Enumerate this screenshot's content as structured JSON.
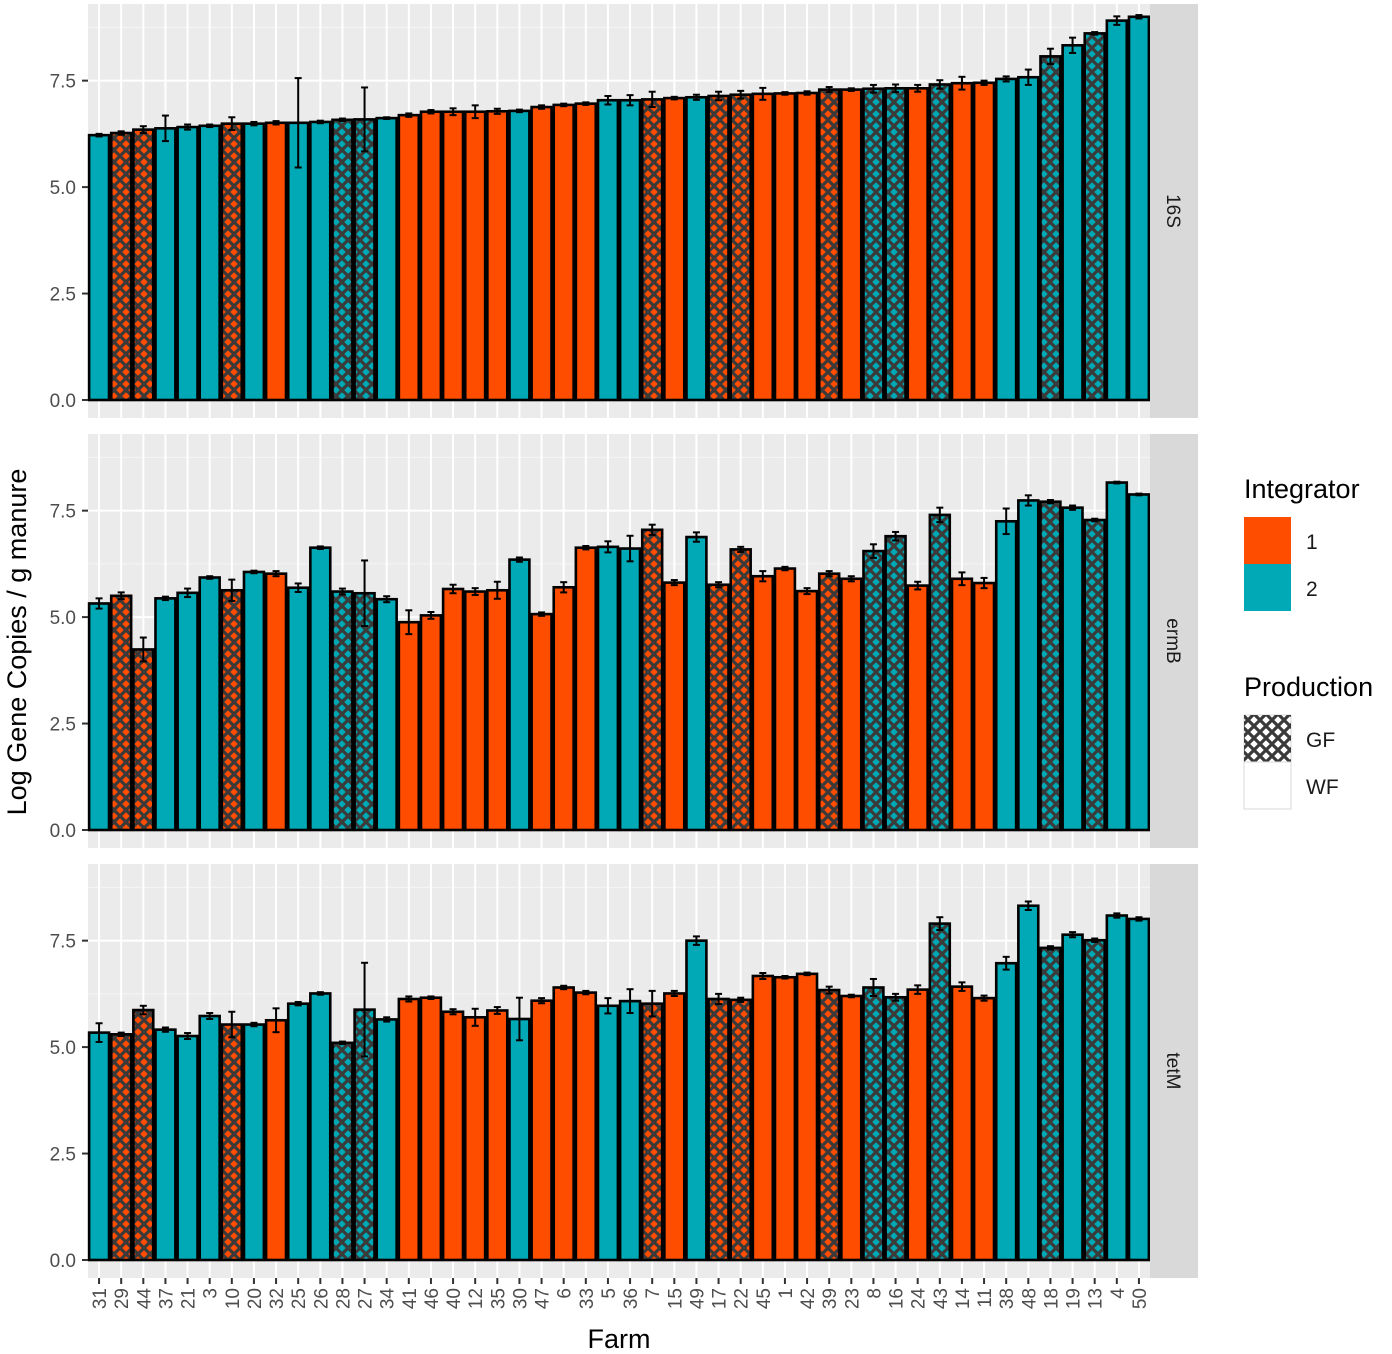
{
  "chart_data": {
    "type": "bar",
    "xlabel": "Farm",
    "ylabel": "Log Gene Copies / g manure",
    "ylim": [
      0,
      9.3
    ],
    "yticks": [
      "0.0",
      "2.5",
      "5.0",
      "7.5"
    ],
    "yticks_values": [
      0,
      2.5,
      5,
      7.5
    ],
    "categories": [
      "31",
      "29",
      "44",
      "37",
      "21",
      "3",
      "10",
      "20",
      "32",
      "25",
      "26",
      "28",
      "27",
      "34",
      "41",
      "46",
      "40",
      "12",
      "35",
      "30",
      "47",
      "6",
      "33",
      "5",
      "36",
      "7",
      "15",
      "49",
      "17",
      "22",
      "45",
      "1",
      "42",
      "39",
      "23",
      "8",
      "16",
      "24",
      "43",
      "14",
      "11",
      "38",
      "48",
      "18",
      "19",
      "13",
      "4",
      "50"
    ],
    "integrator": [
      2,
      1,
      1,
      2,
      2,
      2,
      1,
      2,
      1,
      2,
      2,
      2,
      2,
      2,
      1,
      1,
      1,
      1,
      1,
      2,
      1,
      1,
      1,
      2,
      2,
      1,
      1,
      2,
      1,
      1,
      1,
      1,
      1,
      1,
      1,
      2,
      2,
      1,
      2,
      1,
      1,
      2,
      2,
      2,
      2,
      2,
      2,
      2
    ],
    "production": [
      "WF",
      "GF",
      "GF",
      "WF",
      "WF",
      "WF",
      "GF",
      "WF",
      "WF",
      "WF",
      "WF",
      "GF",
      "GF",
      "WF",
      "WF",
      "WF",
      "WF",
      "WF",
      "WF",
      "WF",
      "WF",
      "WF",
      "WF",
      "WF",
      "WF",
      "GF",
      "WF",
      "WF",
      "GF",
      "GF",
      "WF",
      "WF",
      "WF",
      "GF",
      "WF",
      "GF",
      "GF",
      "WF",
      "GF",
      "WF",
      "WF",
      "WF",
      "WF",
      "GF",
      "WF",
      "GF",
      "WF",
      "WF"
    ],
    "colors": {
      "1": "#FF4D00",
      "2": "#00A9B5"
    },
    "series": [
      {
        "name": "16S",
        "values": [
          6.22,
          6.27,
          6.35,
          6.38,
          6.41,
          6.44,
          6.49,
          6.49,
          6.51,
          6.51,
          6.53,
          6.58,
          6.59,
          6.62,
          6.69,
          6.77,
          6.77,
          6.77,
          6.78,
          6.79,
          6.88,
          6.93,
          6.96,
          7.04,
          7.04,
          7.06,
          7.09,
          7.11,
          7.14,
          7.17,
          7.19,
          7.2,
          7.21,
          7.29,
          7.29,
          7.31,
          7.32,
          7.32,
          7.41,
          7.44,
          7.45,
          7.54,
          7.58,
          8.07,
          8.33,
          8.61,
          8.91,
          9.0
        ],
        "errors": [
          0.03,
          0.04,
          0.08,
          0.3,
          0.06,
          0.03,
          0.15,
          0.04,
          0.04,
          1.05,
          0.03,
          0.03,
          0.75,
          0.02,
          0.04,
          0.04,
          0.08,
          0.15,
          0.06,
          0.03,
          0.04,
          0.03,
          0.03,
          0.1,
          0.12,
          0.18,
          0.03,
          0.06,
          0.1,
          0.09,
          0.14,
          0.03,
          0.04,
          0.06,
          0.03,
          0.09,
          0.09,
          0.08,
          0.1,
          0.15,
          0.05,
          0.06,
          0.18,
          0.18,
          0.18,
          0.03,
          0.1,
          0.04
        ]
      },
      {
        "name": "ermB",
        "values": [
          5.32,
          5.5,
          4.24,
          5.44,
          5.57,
          5.93,
          5.63,
          6.06,
          6.02,
          5.69,
          6.63,
          5.6,
          5.56,
          5.42,
          4.88,
          5.04,
          5.66,
          5.6,
          5.63,
          6.35,
          5.07,
          5.7,
          6.63,
          6.65,
          6.61,
          7.05,
          5.81,
          6.88,
          5.76,
          6.59,
          5.96,
          6.14,
          5.61,
          6.02,
          5.9,
          6.55,
          6.9,
          5.74,
          7.4,
          5.9,
          5.8,
          7.25,
          7.74,
          7.71,
          7.57,
          7.28,
          8.16,
          7.88
        ],
        "errors": [
          0.12,
          0.08,
          0.28,
          0.04,
          0.1,
          0.03,
          0.25,
          0.03,
          0.06,
          0.1,
          0.03,
          0.07,
          0.77,
          0.07,
          0.28,
          0.08,
          0.1,
          0.08,
          0.2,
          0.05,
          0.04,
          0.12,
          0.04,
          0.13,
          0.3,
          0.12,
          0.06,
          0.11,
          0.06,
          0.06,
          0.12,
          0.04,
          0.07,
          0.06,
          0.06,
          0.16,
          0.1,
          0.09,
          0.17,
          0.15,
          0.12,
          0.3,
          0.12,
          0.04,
          0.05,
          0.03,
          0.02,
          0.02
        ]
      },
      {
        "name": "tetM",
        "values": [
          5.34,
          5.3,
          5.87,
          5.41,
          5.26,
          5.73,
          5.53,
          5.53,
          5.63,
          6.02,
          6.26,
          5.1,
          5.88,
          5.65,
          6.13,
          6.16,
          5.83,
          5.7,
          5.86,
          5.66,
          6.09,
          6.4,
          6.28,
          5.97,
          6.08,
          6.02,
          6.26,
          7.5,
          6.13,
          6.11,
          6.67,
          6.64,
          6.72,
          6.34,
          6.2,
          6.4,
          6.17,
          6.35,
          7.9,
          6.42,
          6.15,
          6.97,
          8.32,
          7.33,
          7.64,
          7.51,
          8.09,
          8.01
        ],
        "errors": [
          0.22,
          0.04,
          0.1,
          0.05,
          0.07,
          0.07,
          0.3,
          0.04,
          0.28,
          0.04,
          0.03,
          0.03,
          1.1,
          0.05,
          0.06,
          0.03,
          0.06,
          0.2,
          0.08,
          0.5,
          0.06,
          0.04,
          0.04,
          0.18,
          0.28,
          0.3,
          0.06,
          0.1,
          0.12,
          0.05,
          0.07,
          0.03,
          0.03,
          0.08,
          0.03,
          0.2,
          0.08,
          0.1,
          0.15,
          0.1,
          0.06,
          0.15,
          0.1,
          0.04,
          0.06,
          0.04,
          0.05,
          0.04
        ]
      }
    ],
    "legend": {
      "integrator_title": "Integrator",
      "integrator_items": [
        {
          "label": "1",
          "key": "1"
        },
        {
          "label": "2",
          "key": "2"
        }
      ],
      "production_title": "Production",
      "production_items": [
        {
          "label": "GF",
          "pattern": "crosshatch"
        },
        {
          "label": "WF",
          "pattern": "none"
        }
      ],
      "position": "right"
    },
    "grid": true,
    "facet_position": "right"
  }
}
